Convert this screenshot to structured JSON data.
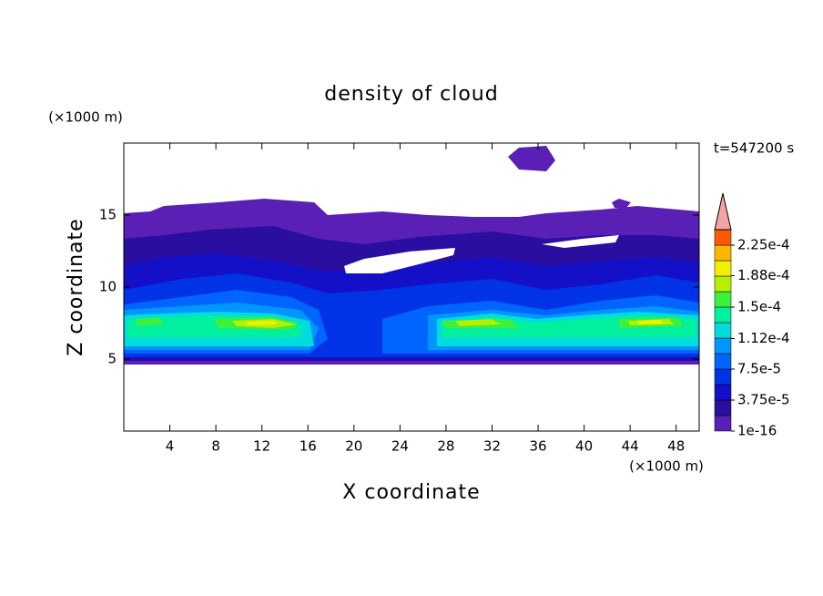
{
  "chart_data": {
    "type": "contour",
    "title": "density of cloud",
    "x_label": "X coordinate",
    "y_label": "Z coordinate",
    "x_unit": "(×1000 m)",
    "y_unit": "(×1000 m)",
    "annotation": "t=547200 s",
    "xlim": [
      0,
      50
    ],
    "ylim": [
      0,
      20
    ],
    "xticks": [
      4,
      8,
      12,
      16,
      20,
      24,
      28,
      32,
      36,
      40,
      44,
      48
    ],
    "yticks": [
      5,
      10,
      15
    ],
    "colorbar": {
      "ticks": [
        {
          "value": 1e-16,
          "label": "1e-16"
        },
        {
          "value": 3.75e-05,
          "label": "3.75e-5"
        },
        {
          "value": 7.5e-05,
          "label": "7.5e-5"
        },
        {
          "value": 0.000112,
          "label": "1.12e-4"
        },
        {
          "value": 0.00015,
          "label": "1.5e-4"
        },
        {
          "value": 0.000188,
          "label": "1.88e-4"
        },
        {
          "value": 0.000225,
          "label": "2.25e-4"
        }
      ],
      "colors": [
        "#5a1fb4",
        "#2a0ea0",
        "#1410c8",
        "#0032e6",
        "#0064ff",
        "#0096ff",
        "#00dcdc",
        "#00f0a0",
        "#3cf03c",
        "#b4f000",
        "#f0f000",
        "#ffb400",
        "#ff5a00"
      ],
      "extend_color": "#f4a4a4"
    }
  }
}
